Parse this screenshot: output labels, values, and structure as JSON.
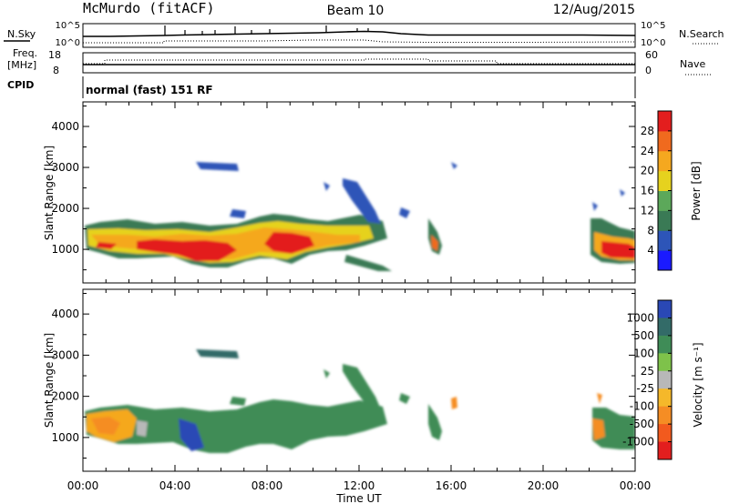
{
  "header": {
    "radar": "McMurdo (fitACF)",
    "beam": "Beam 10",
    "date": "12/Aug/2015"
  },
  "info_panels": {
    "nsky_label": "N.Sky",
    "nsearch_label": "N.Search",
    "noise_ticks": [
      "10^5",
      "10^0"
    ],
    "freq_label": "Freq.",
    "freq_unit": "[MHz]",
    "freq_ticks": [
      18,
      8
    ],
    "nave_label": "Nave",
    "nave_ticks": [
      60,
      0
    ],
    "cpid_label": "CPID",
    "cpid_text": "normal (fast) 151 RF"
  },
  "chart_data": [
    {
      "type": "heatmap",
      "panel": "power",
      "xlabel": "",
      "ylabel": "Slant Range [km]",
      "x_range": [
        "00:00",
        "24:00"
      ],
      "ylim": [
        180,
        4600
      ],
      "y_ticks": [
        1000,
        2000,
        3000,
        4000
      ],
      "colorbar_label": "Power [dB]",
      "colorbar_ticks": [
        4,
        8,
        12,
        16,
        20,
        24,
        28
      ],
      "colorbar_range": [
        0,
        32
      ],
      "colorbar_colors": [
        "#1a1aff",
        "#2d55b8",
        "#3a7a55",
        "#5ca85a",
        "#e6d21e",
        "#f5a81f",
        "#f06a1e",
        "#e31e1e"
      ],
      "echo_regions_range_km": [
        {
          "start": "00:15",
          "end": "05:00",
          "range_low": 650,
          "range_high": 1600
        },
        {
          "start": "05:00",
          "end": "08:00",
          "range_low": 700,
          "range_high": 1500
        },
        {
          "start": "08:00",
          "end": "12:30",
          "range_low": 700,
          "range_high": 1800
        },
        {
          "start": "15:15",
          "end": "15:50",
          "range_low": 800,
          "range_high": 1800
        },
        {
          "start": "22:20",
          "end": "24:00",
          "range_low": 700,
          "range_high": 1900
        }
      ]
    },
    {
      "type": "heatmap",
      "panel": "velocity",
      "xlabel": "Time UT",
      "ylabel": "Slant Range [km]",
      "x_range": [
        "00:00",
        "24:00"
      ],
      "x_ticks": [
        "00:00",
        "04:00",
        "08:00",
        "12:00",
        "16:00",
        "20:00",
        "00:00"
      ],
      "ylim": [
        180,
        4600
      ],
      "y_ticks": [
        1000,
        2000,
        3000,
        4000
      ],
      "colorbar_label": "Velocity [m s⁻¹]",
      "colorbar_ticks": [
        1000,
        500,
        100,
        25,
        -25,
        -100,
        -500,
        -1000
      ],
      "colorbar_colors": [
        "#2a48b5",
        "#336b68",
        "#3f8c57",
        "#7ec24a",
        "#b8b8b8",
        "#f5b82a",
        "#f58d24",
        "#f25a1e",
        "#e31e1e"
      ]
    }
  ]
}
